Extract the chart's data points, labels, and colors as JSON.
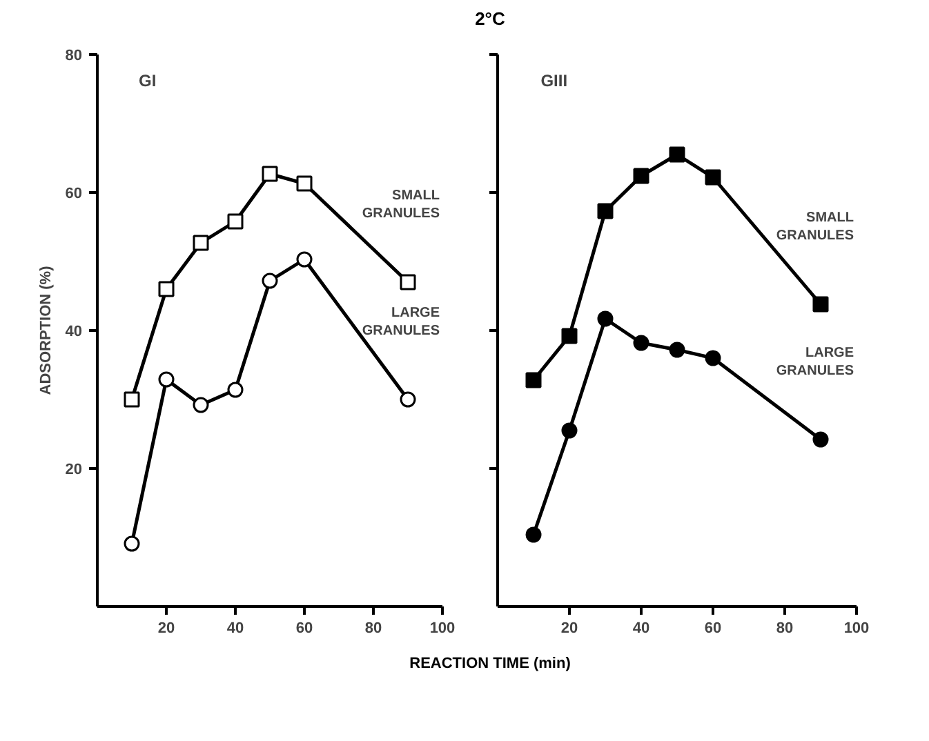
{
  "chart_data": [
    {
      "type": "line",
      "title": "GI",
      "annotations": [
        "2°C"
      ],
      "xlabel": "REACTION TIME (min)",
      "ylabel": "ADSORPTION (%)",
      "xlim": [
        0,
        100
      ],
      "ylim": [
        0,
        80
      ],
      "xticks": [
        20,
        40,
        60,
        80,
        100
      ],
      "yticks": [
        20,
        40,
        60,
        80
      ],
      "grid": false,
      "line_style": "solid",
      "series": [
        {
          "name": "SMALL GRANULES",
          "color": "#000000",
          "marker": "square",
          "x": [
            10,
            20,
            30,
            40,
            50,
            60,
            90
          ],
          "values": [
            30,
            46,
            52.7,
            55.8,
            62.7,
            61.3,
            47
          ]
        },
        {
          "name": "LARGE GRANULES",
          "color": "#000000",
          "marker": "circle",
          "x": [
            10,
            20,
            30,
            40,
            50,
            60,
            90
          ],
          "values": [
            9.1,
            32.9,
            29.2,
            31.4,
            47.2,
            50.3,
            30
          ]
        }
      ]
    },
    {
      "type": "line",
      "title": "GIII",
      "xlim": [
        0,
        100
      ],
      "ylim": [
        0,
        80
      ],
      "xticks": [
        20,
        40,
        60,
        80,
        100
      ],
      "yticks": [
        20,
        40,
        60,
        80
      ],
      "tick_labels": "x",
      "grid": false,
      "line_style": "solid",
      "series": [
        {
          "name": "SMALL GRANULES",
          "color": "#000000",
          "marker": "square",
          "x": [
            10,
            20,
            30,
            40,
            50,
            60,
            90
          ],
          "values": [
            32.8,
            39.2,
            57.3,
            62.4,
            65.5,
            62.2,
            43.8
          ]
        },
        {
          "name": "LARGE GRANULES",
          "color": "#000000",
          "marker": "circle",
          "x": [
            10,
            20,
            30,
            40,
            50,
            60,
            90
          ],
          "values": [
            10.4,
            25.5,
            41.7,
            38.2,
            37.2,
            36.0,
            24.2
          ]
        }
      ]
    }
  ]
}
